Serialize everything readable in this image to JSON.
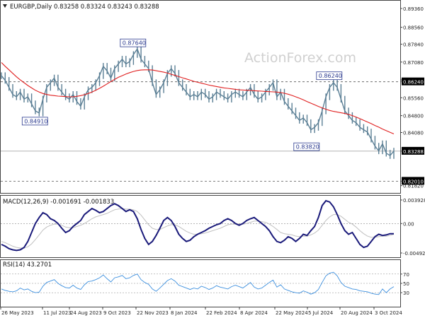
{
  "chart_data": [
    {
      "type": "line",
      "panel": "price",
      "title": "EURGBP,Daily  0.83258 0.83324 0.83243 0.83288",
      "watermark": "ActionForex.com",
      "ylim": [
        0.816,
        0.896
      ],
      "y_ticks": [
        "0.89360",
        "0.88560",
        "0.87840",
        "0.87080",
        "0.86320",
        "0.85560",
        "0.84800",
        "0.84080",
        "0.83288",
        "0.82010",
        "0.81820"
      ],
      "x_ticks": [
        "26 May 2023",
        "11 Jul 2023",
        "24 Aug 2023",
        "9 Oct 2023",
        "22 Nov 2023",
        "8 Jan 2024",
        "22 Feb 2024",
        "8 Apr 2024",
        "22 May 2024",
        "5 Jul 2024",
        "20 Aug 2024",
        "3 Oct 2024"
      ],
      "reference_lines": [
        {
          "label": "0.86240",
          "value": 0.8624,
          "style": "dashed"
        },
        {
          "label": "0.83288",
          "value": 0.83288,
          "style": "solid"
        },
        {
          "label": "0.82010",
          "value": 0.8201,
          "style": "dashed"
        }
      ],
      "annotations": [
        {
          "label": "0.87640",
          "value": 0.8764,
          "index": 36
        },
        {
          "label": "0.84910",
          "value": 0.8491,
          "index": 10
        },
        {
          "label": "0.86240",
          "value": 0.8624,
          "index": 88
        },
        {
          "label": "0.83820",
          "value": 0.8382,
          "index": 82
        }
      ],
      "series": [
        {
          "name": "EURGBP",
          "color": "#5b7f95",
          "values": [
            0.865,
            0.863,
            0.86,
            0.857,
            0.856,
            0.858,
            0.855,
            0.856,
            0.853,
            0.85,
            0.8491,
            0.855,
            0.86,
            0.862,
            0.864,
            0.86,
            0.858,
            0.856,
            0.855,
            0.857,
            0.854,
            0.852,
            0.856,
            0.859,
            0.86,
            0.862,
            0.865,
            0.869,
            0.867,
            0.864,
            0.868,
            0.87,
            0.872,
            0.87,
            0.871,
            0.874,
            0.8764,
            0.872,
            0.87,
            0.868,
            0.862,
            0.857,
            0.859,
            0.862,
            0.866,
            0.868,
            0.866,
            0.862,
            0.86,
            0.858,
            0.856,
            0.857,
            0.856,
            0.858,
            0.857,
            0.855,
            0.856,
            0.858,
            0.857,
            0.856,
            0.855,
            0.857,
            0.858,
            0.857,
            0.856,
            0.858,
            0.86,
            0.857,
            0.855,
            0.856,
            0.858,
            0.86,
            0.862,
            0.856,
            0.858,
            0.854,
            0.852,
            0.85,
            0.848,
            0.846,
            0.847,
            0.845,
            0.842,
            0.843,
            0.845,
            0.85,
            0.856,
            0.86,
            0.862,
            0.86,
            0.855,
            0.85,
            0.848,
            0.846,
            0.845,
            0.843,
            0.842,
            0.841,
            0.838,
            0.835,
            0.833,
            0.836,
            0.832,
            0.831,
            0.8329
          ]
        },
        {
          "name": "MA",
          "color": "#e02020",
          "values": [
            0.8706,
            0.869,
            0.8675,
            0.866,
            0.8645,
            0.8632,
            0.862,
            0.8608,
            0.8598,
            0.8588,
            0.858,
            0.8574,
            0.857,
            0.8567,
            0.8565,
            0.8563,
            0.8562,
            0.8561,
            0.856,
            0.856,
            0.8562,
            0.8565,
            0.8569,
            0.8574,
            0.858,
            0.8588,
            0.8596,
            0.8605,
            0.8615,
            0.8625,
            0.8634,
            0.8643,
            0.865,
            0.8657,
            0.8663,
            0.8668,
            0.8672,
            0.8674,
            0.8675,
            0.8675,
            0.8674,
            0.8671,
            0.8668,
            0.8665,
            0.8661,
            0.8656,
            0.8651,
            0.8646,
            0.8641,
            0.8636,
            0.8631,
            0.8626,
            0.8622,
            0.8618,
            0.8614,
            0.861,
            0.8607,
            0.8604,
            0.8601,
            0.8598,
            0.8596,
            0.8594,
            0.8592,
            0.859,
            0.8589,
            0.8588,
            0.8587,
            0.8586,
            0.8585,
            0.8584,
            0.8583,
            0.8582,
            0.8581,
            0.858,
            0.8578,
            0.8575,
            0.8571,
            0.8566,
            0.856,
            0.8554,
            0.8547,
            0.854,
            0.8533,
            0.8526,
            0.8519,
            0.8513,
            0.8507,
            0.8502,
            0.8498,
            0.8495,
            0.8492,
            0.8489,
            0.8485,
            0.848,
            0.8474,
            0.8467,
            0.846,
            0.8453,
            0.8446,
            0.8438,
            0.8431,
            0.8423,
            0.8416,
            0.8409,
            0.8402
          ]
        }
      ]
    },
    {
      "type": "line",
      "panel": "macd",
      "title": "MACD(12,26,9) -0.001691 -0.001833",
      "ylim": [
        -0.0054,
        0.0044
      ],
      "y_ticks": [
        "0.003928",
        "0.00",
        "-0.004929"
      ],
      "series": [
        {
          "name": "MACD",
          "color": "#1a1a7a",
          "values": [
            -0.0035,
            -0.0038,
            -0.0042,
            -0.0044,
            -0.0045,
            -0.0044,
            -0.004,
            -0.003,
            -0.0015,
            0.0,
            0.001,
            0.0018,
            0.0015,
            0.0008,
            0.0005,
            0.0,
            -0.0008,
            -0.0015,
            -0.0012,
            -0.0005,
            0.0,
            0.0005,
            0.0015,
            0.002,
            0.0025,
            0.0022,
            0.0018,
            0.002,
            0.0025,
            0.003,
            0.0033,
            0.003,
            0.0025,
            0.002,
            0.0023,
            0.002,
            0.0008,
            -0.001,
            -0.0025,
            -0.0035,
            -0.003,
            -0.002,
            -0.0008,
            0.0005,
            0.001,
            0.0005,
            -0.0005,
            -0.0018,
            -0.0025,
            -0.003,
            -0.0028,
            -0.0022,
            -0.0018,
            -0.0015,
            -0.0012,
            -0.0008,
            -0.0005,
            -0.0002,
            0.0,
            0.0005,
            0.0008,
            0.0005,
            0.0,
            -0.0003,
            0.0,
            0.0005,
            0.0008,
            0.001,
            0.0005,
            0.0,
            -0.0005,
            -0.0012,
            -0.0022,
            -0.003,
            -0.0032,
            -0.0028,
            -0.0022,
            -0.0025,
            -0.003,
            -0.0025,
            -0.0018,
            -0.002,
            -0.0012,
            -0.0005,
            0.001,
            0.003,
            0.0038,
            0.0036,
            0.0028,
            0.0015,
            0.0,
            -0.0012,
            -0.0018,
            -0.0015,
            -0.0025,
            -0.0035,
            -0.004,
            -0.0038,
            -0.003,
            -0.0022,
            -0.0018,
            -0.002,
            -0.0019,
            -0.0017,
            -0.0017
          ]
        },
        {
          "name": "Signal",
          "color": "#c0c0c0",
          "values": [
            -0.003,
            -0.0032,
            -0.0035,
            -0.0038,
            -0.004,
            -0.0041,
            -0.0041,
            -0.0039,
            -0.0034,
            -0.0027,
            -0.0019,
            -0.0011,
            -0.0006,
            -0.0003,
            -0.0001,
            -0.0001,
            -0.0003,
            -0.0006,
            -0.0007,
            -0.0007,
            -0.0005,
            -0.0003,
            0.0,
            0.0004,
            0.0008,
            0.0011,
            0.0013,
            0.0015,
            0.0017,
            0.002,
            0.0023,
            0.0024,
            0.0025,
            0.0024,
            0.0024,
            0.0023,
            0.002,
            0.0014,
            0.0006,
            -0.0002,
            -0.0008,
            -0.001,
            -0.001,
            -0.0007,
            -0.0004,
            -0.0002,
            -0.0002,
            -0.0005,
            -0.0009,
            -0.0013,
            -0.0016,
            -0.0018,
            -0.0018,
            -0.0017,
            -0.0016,
            -0.0014,
            -0.0012,
            -0.001,
            -0.0008,
            -0.0005,
            -0.0002,
            -0.0001,
            -0.0001,
            -0.0001,
            -0.0001,
            0.0,
            0.0002,
            0.0004,
            0.0004,
            0.0003,
            0.0002,
            -0.0001,
            -0.0005,
            -0.001,
            -0.0015,
            -0.0017,
            -0.0018,
            -0.0019,
            -0.0021,
            -0.0022,
            -0.0021,
            -0.0021,
            -0.0019,
            -0.0016,
            -0.0011,
            -0.0003,
            0.0005,
            0.0011,
            0.0015,
            0.0015,
            0.0012,
            0.0007,
            0.0002,
            -0.0001,
            -0.0006,
            -0.0012,
            -0.0017,
            -0.0021,
            -0.0023,
            -0.0023,
            -0.0022,
            -0.0021,
            -0.0021,
            -0.002,
            -0.0018
          ]
        }
      ]
    },
    {
      "type": "line",
      "panel": "rsi",
      "title": "RSI(14) 43.2701",
      "ylim": [
        0,
        100
      ],
      "y_ticks": [
        "70",
        "50",
        "30"
      ],
      "series": [
        {
          "name": "RSI",
          "color": "#3c8fde",
          "values": [
            38,
            35,
            33,
            32,
            34,
            40,
            36,
            38,
            33,
            30,
            31,
            44,
            52,
            55,
            58,
            50,
            45,
            41,
            40,
            46,
            40,
            37,
            47,
            54,
            55,
            58,
            62,
            68,
            60,
            53,
            62,
            64,
            67,
            60,
            62,
            67,
            70,
            58,
            52,
            48,
            38,
            33,
            40,
            48,
            56,
            60,
            55,
            46,
            43,
            40,
            37,
            40,
            38,
            44,
            41,
            37,
            40,
            45,
            42,
            40,
            38,
            43,
            46,
            43,
            40,
            46,
            52,
            42,
            38,
            40,
            46,
            52,
            57,
            42,
            47,
            38,
            35,
            32,
            30,
            29,
            34,
            31,
            27,
            30,
            37,
            52,
            66,
            72,
            74,
            66,
            52,
            44,
            41,
            38,
            37,
            34,
            33,
            32,
            29,
            27,
            26,
            38,
            30,
            38,
            43
          ]
        }
      ]
    }
  ]
}
